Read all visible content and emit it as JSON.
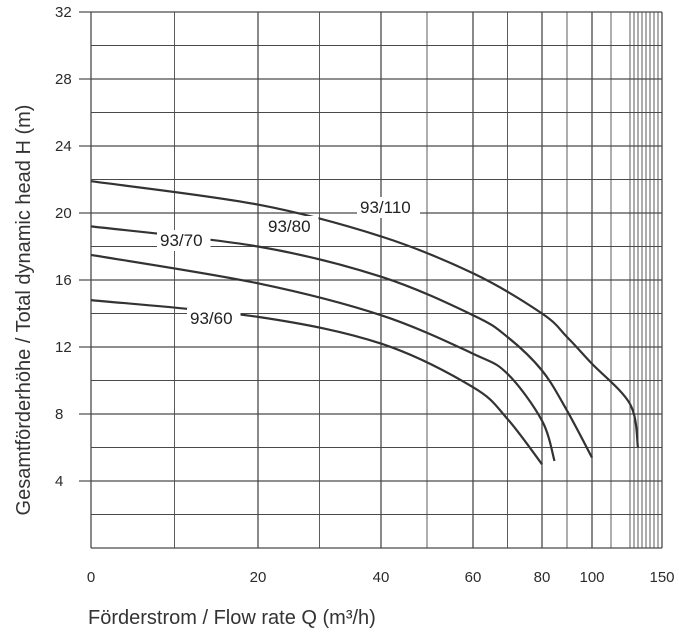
{
  "chart_data": {
    "type": "line",
    "xlabel": "Förderstrom /  Flow rate   Q (m³/h)",
    "ylabel": "Gesamtförderhöhe / Total dynamic head     H (m)",
    "x_tick_labels": [
      "0",
      "20",
      "40",
      "60",
      "80",
      "100",
      "150"
    ],
    "x_ticks": [
      0,
      20,
      40,
      60,
      80,
      100,
      150
    ],
    "y_ticks": [
      4,
      8,
      12,
      16,
      20,
      24,
      28,
      32
    ],
    "x_scale": "non-linear (compressed toward high flow)",
    "ylim": [
      0,
      32
    ],
    "grid": true,
    "series": [
      {
        "name": "93/110",
        "x": [
          0,
          20,
          40,
          60,
          80,
          90,
          100,
          110,
          120
        ],
        "y": [
          21.9,
          20.5,
          18.6,
          16.4,
          14.0,
          12.6,
          11.0,
          8.6,
          6.0
        ]
      },
      {
        "name": "93/80",
        "x": [
          0,
          20,
          40,
          60,
          70,
          80,
          90,
          100
        ],
        "y": [
          19.2,
          18.0,
          16.2,
          13.9,
          12.6,
          10.6,
          8.2,
          5.4
        ]
      },
      {
        "name": "93/70",
        "x": [
          0,
          20,
          40,
          60,
          70,
          80,
          85
        ],
        "y": [
          17.5,
          15.8,
          13.9,
          11.6,
          10.4,
          7.6,
          5.2
        ]
      },
      {
        "name": "93/60",
        "x": [
          0,
          20,
          40,
          60,
          70,
          80
        ],
        "y": [
          14.8,
          13.8,
          12.2,
          9.6,
          7.7,
          5.0
        ]
      }
    ]
  }
}
